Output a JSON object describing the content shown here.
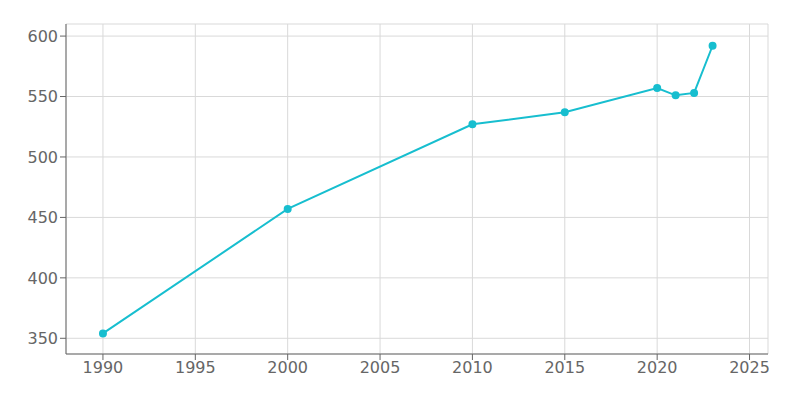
{
  "chart_data": {
    "type": "line",
    "x": [
      1990,
      2000,
      2010,
      2015,
      2020,
      2021,
      2022,
      2023
    ],
    "values": [
      354,
      457,
      527,
      537,
      557,
      551,
      553,
      592
    ],
    "color": "#17becf",
    "marker": "circle",
    "xlim": [
      1988,
      2026
    ],
    "ylim": [
      337,
      610
    ],
    "xticks": [
      1990,
      1995,
      2000,
      2005,
      2010,
      2015,
      2020,
      2025
    ],
    "yticks": [
      350,
      400,
      450,
      500,
      550,
      600
    ],
    "grid": true
  }
}
